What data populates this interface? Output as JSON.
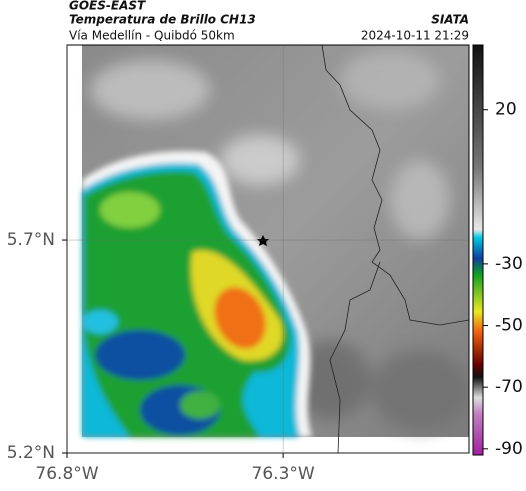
{
  "header": {
    "title": "GOES-EAST",
    "subtitle": "Temperatura de Brillo CH13",
    "source": "SIATA",
    "location": "Vía Medellín - Quibdó 50km",
    "timestamp": "2024-10-11 21:29"
  },
  "map": {
    "xlim": [
      -76.8,
      -75.87
    ],
    "ylim": [
      5.2,
      6.158
    ],
    "xticks": [
      {
        "value": -76.8,
        "label": "76.8°W"
      },
      {
        "value": -76.3,
        "label": "76.3°W"
      }
    ],
    "yticks": [
      {
        "value": 5.7,
        "label": "5.7°N"
      },
      {
        "value": 5.2,
        "label": "5.2°N"
      }
    ],
    "grid": true
  },
  "colorbar": {
    "lim": [
      -92,
      41
    ],
    "ticks": [
      20,
      -30,
      -50,
      -70,
      -90
    ]
  }
}
